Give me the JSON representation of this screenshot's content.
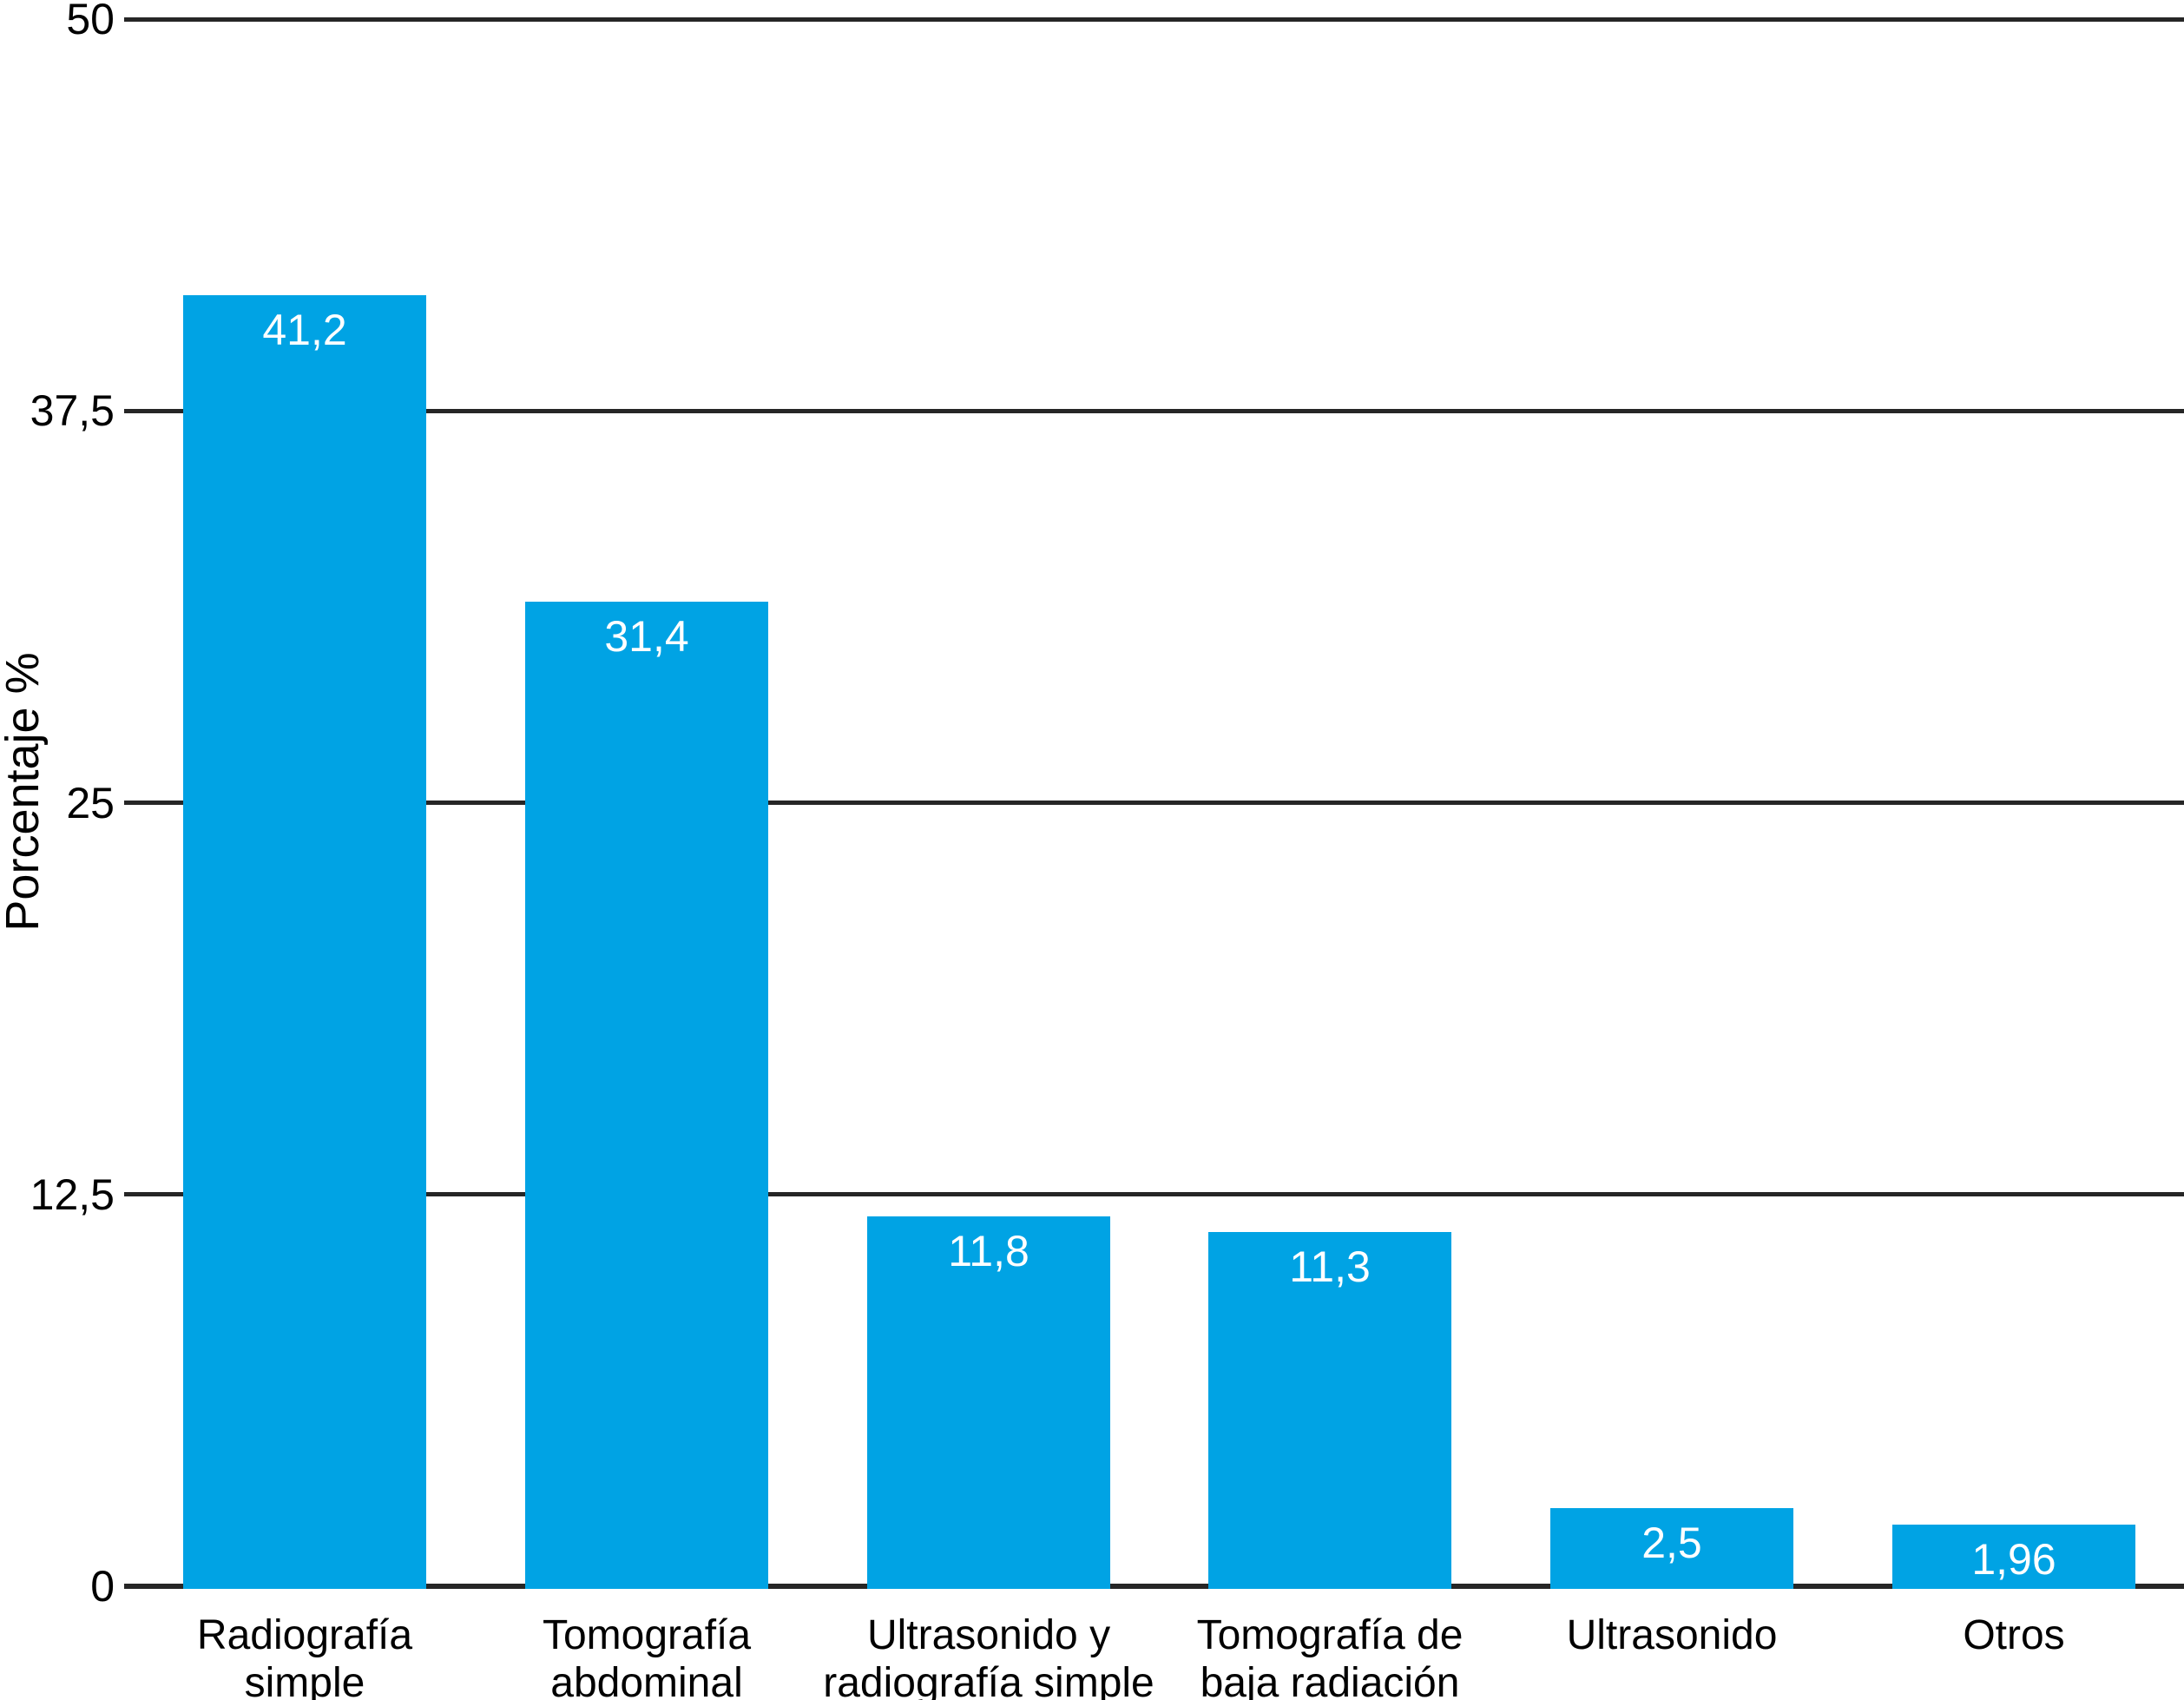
{
  "chart_data": {
    "type": "bar",
    "title": "",
    "xlabel": "",
    "ylabel": "Porcentaje %",
    "ylim": [
      0,
      50
    ],
    "grid": true,
    "legend": false,
    "yticks": [
      {
        "value": 50,
        "label": "50"
      },
      {
        "value": 37.5,
        "label": "37,5"
      },
      {
        "value": 25,
        "label": "25"
      },
      {
        "value": 12.5,
        "label": "12,5"
      },
      {
        "value": 0,
        "label": "0"
      }
    ],
    "categories": [
      "Radiografía simple",
      "Tomografía abdominal",
      "Ultrasonido y radiografía simple",
      "Tomografía de baja radiación",
      "Ultrasonido",
      "Otros"
    ],
    "category_lines": [
      [
        "Radiografía",
        "simple"
      ],
      [
        "Tomografía",
        "abdominal"
      ],
      [
        "Ultrasonido y",
        "radiografía simple"
      ],
      [
        "Tomografía de",
        "baja radiación"
      ],
      [
        "Ultrasonido"
      ],
      [
        "Otros"
      ]
    ],
    "values": [
      41.2,
      31.4,
      11.8,
      11.3,
      2.5,
      1.96
    ],
    "value_labels": [
      "41,2",
      "31,4",
      "11,8",
      "11,3",
      "2,5",
      "1,96"
    ],
    "colors": {
      "bar": "#00A3E4",
      "value_text": "#FFFFFF",
      "line": "#262626",
      "text": "#000000",
      "background": "#FFFFFF"
    }
  }
}
